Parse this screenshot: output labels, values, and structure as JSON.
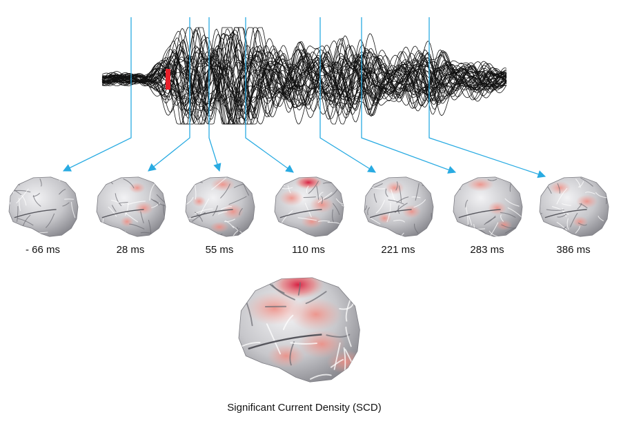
{
  "time_points": [
    {
      "label": "- 66 ms"
    },
    {
      "label": "28 ms"
    },
    {
      "label": "55 ms"
    },
    {
      "label": "110 ms"
    },
    {
      "label": "221 ms"
    },
    {
      "label": "283 ms"
    },
    {
      "label": "386 ms"
    }
  ],
  "caption": "Significant Current Density (SCD)",
  "colors": {
    "trace": "#111111",
    "stimulus_marker": "#e8202a",
    "arrow": "#29abe2",
    "cortex_base": "#c9c9cc",
    "activation_low": "#f4a39a",
    "activation_high": "#d7193c"
  },
  "icons": {
    "waveform": "eeg-butterfly-plot",
    "brain": "cortex-surface-render"
  }
}
